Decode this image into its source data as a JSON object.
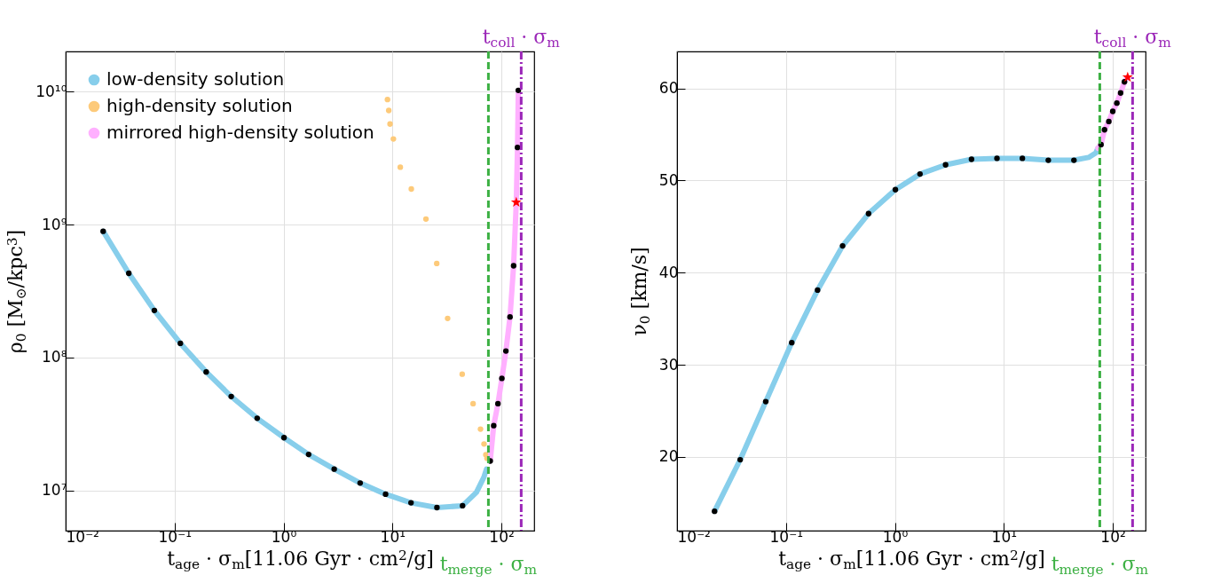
{
  "chart_data": [
    {
      "type": "line",
      "xlabel": "t$_{age}$ · σ$_{m}$[11.06 Gyr · cm$^{2}$/g]",
      "ylabel": "ρ$_{0}$ [M$_{⊙}$/kpc$^{3}$]",
      "log": "xy",
      "grid": true,
      "legend": "top left",
      "xlim": [
        0.01,
        200
      ],
      "ylim": [
        5000000,
        20000000000
      ],
      "xticks": [
        {
          "value": 0.01,
          "label": "10⁻²"
        },
        {
          "value": 0.1,
          "label": "10⁻¹"
        },
        {
          "value": 1,
          "label": "10⁰"
        },
        {
          "value": 10,
          "label": "10¹"
        },
        {
          "value": 100,
          "label": "10²"
        }
      ],
      "yticks": [
        {
          "value": 10000000,
          "label": "10⁷"
        },
        {
          "value": 100000000,
          "label": "10⁸"
        },
        {
          "value": 1000000000,
          "label": "10⁹"
        },
        {
          "value": 10000000000,
          "label": "10¹⁰"
        }
      ],
      "series": [
        {
          "name": "low-density solution",
          "type": "line",
          "color": "#87ceeb",
          "x": [
            0.0221,
            0.038,
            0.0652,
            0.113,
            0.195,
            0.331,
            0.573,
            1.01,
            1.7,
            2.92,
            5.05,
            8.65,
            14.8,
            25.6,
            44,
            59,
            69,
            73
          ],
          "values": [
            890000000,
            430000000,
            226000000,
            128000000,
            78000000,
            51000000,
            35000000,
            25000000,
            18700000,
            14500000,
            11400000,
            9400000,
            8100000,
            7450000,
            7700000,
            9700000,
            12600000,
            14500000
          ]
        },
        {
          "name": "high-density solution",
          "type": "scatter",
          "marker": "circle",
          "color": "#fdca7a",
          "x": [
            9.0,
            9.25,
            9.5,
            10.2,
            11.8,
            14.9,
            20.3,
            25.5,
            32.1,
            43.7,
            55,
            64.3,
            69.3,
            72,
            73.8
          ],
          "values": [
            8700000000,
            7200000000,
            5700000000,
            4400000000,
            2700000000,
            1850000000,
            1100000000,
            510000000,
            197000000,
            75000000,
            45000000,
            29000000,
            22400000,
            18600000,
            17500000
          ]
        },
        {
          "name": "mirrored high-density solution",
          "type": "line",
          "color": "#ffb0ff",
          "x": [
            79,
            85,
            93,
            101,
            110,
            120,
            129.5,
            137,
            140.6,
            143
          ],
          "values": [
            16700000,
            30800000,
            45000000,
            69700000,
            112000000,
            202000000,
            490000000,
            1470000000,
            3800000000,
            10000000000
          ]
        },
        {
          "type": "scatter",
          "marker": "circle",
          "color": "#000000",
          "x": [
            0.0221,
            0.038,
            0.0652,
            0.113,
            0.195,
            0.331,
            0.573,
            1.01,
            1.7,
            2.92,
            5.05,
            8.65,
            14.8,
            25.6,
            44,
            79,
            85,
            93,
            101,
            110,
            120,
            129.5,
            140.6,
            143
          ],
          "values": [
            890000000,
            430000000,
            226000000,
            128000000,
            78000000,
            51000000,
            35000000,
            25000000,
            18700000,
            14500000,
            11400000,
            9400000,
            8100000,
            7450000,
            7700000,
            16700000,
            30800000,
            45000000,
            69700000,
            112000000,
            202000000,
            490000000,
            3800000000,
            10200000000
          ]
        },
        {
          "type": "scatter",
          "marker": "star",
          "color": "#ff0000",
          "x": [
            137
          ],
          "values": [
            1470000000
          ]
        }
      ],
      "ref_lines": [
        {
          "axis": "x",
          "value": 76,
          "label": "t$_{merge}$ · σ$_{m}$",
          "color": "#3cb043",
          "line_style": "dashed"
        },
        {
          "axis": "x",
          "value": 152,
          "label": "t$_{coll}$ · σ$_{m}$",
          "color": "#9b27b8",
          "line_style": "dashdot"
        }
      ]
    },
    {
      "type": "line",
      "xlabel": "t$_{age}$ · σ$_{m}$[11.06 Gyr · cm$^{2}$/g]",
      "ylabel": "ν$_{0}$ [km/s]",
      "log": "x",
      "grid": true,
      "xlim": [
        0.01,
        200
      ],
      "ylim": [
        12,
        64
      ],
      "xticks": [
        {
          "value": 0.01,
          "label": "10⁻²"
        },
        {
          "value": 0.1,
          "label": "10⁻¹"
        },
        {
          "value": 1,
          "label": "10⁰"
        },
        {
          "value": 10,
          "label": "10¹"
        },
        {
          "value": 100,
          "label": "10²"
        }
      ],
      "yticks": [
        20,
        30,
        40,
        50,
        60
      ],
      "series": [
        {
          "type": "line",
          "color": "#87ceeb",
          "x": [
            0.0221,
            0.038,
            0.0652,
            0.113,
            0.195,
            0.331,
            0.573,
            1.01,
            1.7,
            2.92,
            5.05,
            8.65,
            14.8,
            25.6,
            44,
            60,
            70,
            73
          ],
          "values": [
            14.1,
            19.7,
            26.0,
            32.4,
            38.1,
            42.9,
            46.4,
            49.0,
            50.7,
            51.7,
            52.3,
            52.4,
            52.4,
            52.2,
            52.2,
            52.5,
            53.0,
            53.5
          ]
        },
        {
          "type": "line",
          "color": "#ffb0ff",
          "x": [
            73,
            78,
            84,
            92,
            100,
            109,
            118,
            128,
            137
          ],
          "values": [
            53.5,
            53.9,
            55.5,
            56.4,
            57.5,
            58.4,
            59.5,
            60.7,
            61.2
          ]
        },
        {
          "type": "scatter",
          "marker": "circle",
          "color": "#000000",
          "x": [
            0.0221,
            0.038,
            0.0652,
            0.113,
            0.195,
            0.331,
            0.573,
            1.01,
            1.7,
            2.92,
            5.05,
            8.65,
            14.8,
            25.6,
            44,
            78,
            84,
            92,
            100,
            109,
            118,
            128
          ],
          "values": [
            14.1,
            19.7,
            26.0,
            32.4,
            38.1,
            42.9,
            46.4,
            49.0,
            50.7,
            51.7,
            52.3,
            52.4,
            52.4,
            52.2,
            52.2,
            53.9,
            55.5,
            56.4,
            57.5,
            58.4,
            59.5,
            60.7
          ]
        },
        {
          "type": "scatter",
          "marker": "star",
          "color": "#ff0000",
          "x": [
            137
          ],
          "values": [
            61.2
          ]
        }
      ],
      "ref_lines": [
        {
          "axis": "x",
          "value": 76,
          "label": "t$_{merge}$ · σ$_{m}$",
          "color": "#3cb043",
          "line_style": "dashed"
        },
        {
          "axis": "x",
          "value": 152,
          "label": "t$_{coll}$ · σ$_{m}$",
          "color": "#9b27b8",
          "line_style": "dashdot"
        }
      ]
    }
  ]
}
